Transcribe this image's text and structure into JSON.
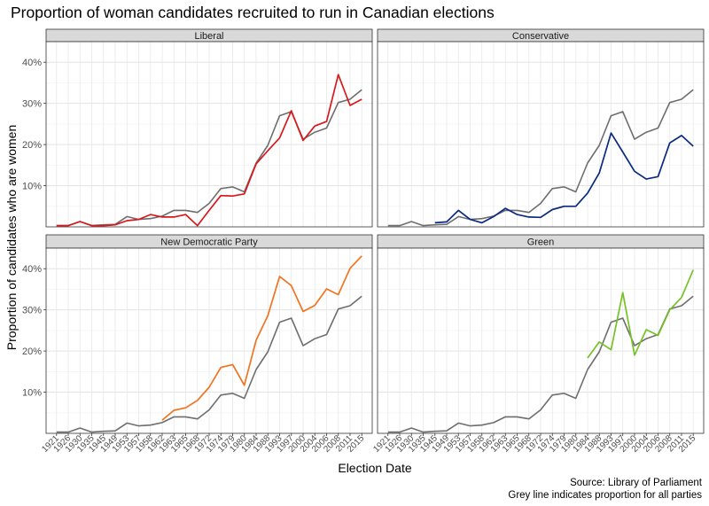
{
  "title": "Proportion of woman candidates recruited to run in Canadian elections",
  "caption": {
    "line1": "Source: Library of Parliament",
    "line2": "Grey line indicates proportion for all parties"
  },
  "chart_data": {
    "type": "line",
    "xlabel": "Election Date",
    "ylabel": "Proportion of candidates who are women",
    "x": [
      "1921",
      "1926",
      "1930",
      "1935",
      "1945",
      "1949",
      "1953",
      "1957",
      "1958",
      "1962",
      "1963",
      "1965",
      "1968",
      "1972",
      "1974",
      "1979",
      "1980",
      "1984",
      "1988",
      "1993",
      "1997",
      "2000",
      "2004",
      "2006",
      "2008",
      "2011",
      "2015"
    ],
    "yticks": [
      "10%",
      "20%",
      "30%",
      "40%"
    ],
    "ylim": [
      0,
      0.45
    ],
    "grid": true,
    "colors": {
      "all_parties": "#6e6e6e",
      "Liberal": "#d7191c",
      "Conservative": "#0b2a80",
      "New Democratic Party": "#f07320",
      "Green": "#74c226"
    },
    "all_parties": [
      0.003,
      0.003,
      0.013,
      0.003,
      0.005,
      0.006,
      0.025,
      0.018,
      0.02,
      0.026,
      0.04,
      0.04,
      0.035,
      0.057,
      0.093,
      0.097,
      0.085,
      0.155,
      0.198,
      0.27,
      0.28,
      0.213,
      0.23,
      0.24,
      0.302,
      0.31,
      0.333
    ],
    "panels": [
      {
        "name": "Liberal",
        "start": 0,
        "values": [
          0.003,
          0.003,
          0.013,
          0.003,
          0.003,
          0.005,
          0.015,
          0.018,
          0.03,
          0.024,
          0.024,
          0.03,
          0.003,
          0.04,
          0.076,
          0.075,
          0.08,
          0.153,
          0.185,
          0.216,
          0.282,
          0.21,
          0.245,
          0.256,
          0.37,
          0.295,
          0.31
        ]
      },
      {
        "name": "Conservative",
        "start": 4,
        "values": [
          0.01,
          0.012,
          0.04,
          0.018,
          0.01,
          0.025,
          0.045,
          0.03,
          0.024,
          0.023,
          0.042,
          0.05,
          0.05,
          0.082,
          0.131,
          0.228,
          0.182,
          0.135,
          0.116,
          0.122,
          0.204,
          0.222,
          0.196
        ]
      },
      {
        "name": "New Democratic Party",
        "start": 9,
        "values": [
          0.032,
          0.056,
          0.062,
          0.08,
          0.112,
          0.16,
          0.167,
          0.117,
          0.226,
          0.286,
          0.381,
          0.359,
          0.296,
          0.311,
          0.351,
          0.337,
          0.401,
          0.431
        ]
      },
      {
        "name": "Green",
        "start": 17,
        "values": [
          0.183,
          0.222,
          0.203,
          0.342,
          0.19,
          0.252,
          0.238,
          0.3,
          0.33,
          0.397
        ]
      }
    ]
  }
}
